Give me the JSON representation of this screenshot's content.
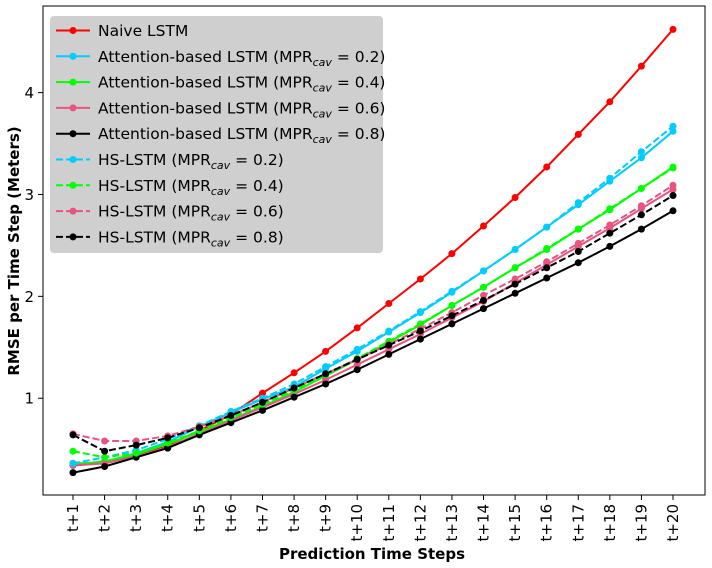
{
  "chart_data": {
    "type": "line",
    "title": "",
    "xlabel": "Prediction Time Steps",
    "ylabel": "RMSE per Time Step (Meters)",
    "ylim": [
      0.05,
      4.85
    ],
    "yticks": [
      1,
      2,
      3,
      4
    ],
    "legend_position": "top-left",
    "categories": [
      "t+1",
      "t+2",
      "t+3",
      "t+4",
      "t+5",
      "t+6",
      "t+7",
      "t+8",
      "t+9",
      "t+10",
      "t+11",
      "t+12",
      "t+13",
      "t+14",
      "t+15",
      "t+16",
      "t+17",
      "t+18",
      "t+19",
      "t+20"
    ],
    "series": [
      {
        "name": "Naive LSTM",
        "label_main": "Naive LSTM",
        "label_sub": "",
        "label_tail": "",
        "color": "#ff0000",
        "dashed": false,
        "values": [
          0.36,
          0.36,
          0.44,
          0.54,
          0.68,
          0.84,
          1.05,
          1.25,
          1.46,
          1.69,
          1.93,
          2.17,
          2.42,
          2.69,
          2.97,
          3.27,
          3.59,
          3.91,
          4.26,
          4.62
        ]
      },
      {
        "name": "Attention-based LSTM (MPRcav = 0.2)",
        "label_main": "Attention-based LSTM (MPR",
        "label_sub": "cav",
        "label_tail": " = 0.2)",
        "color": "#00ccff",
        "dashed": false,
        "values": [
          0.35,
          0.37,
          0.46,
          0.57,
          0.72,
          0.86,
          0.99,
          1.11,
          1.29,
          1.46,
          1.65,
          1.84,
          2.04,
          2.25,
          2.46,
          2.68,
          2.9,
          3.13,
          3.36,
          3.62
        ]
      },
      {
        "name": "Attention-based LSTM (MPRcav = 0.4)",
        "label_main": "Attention-based LSTM (MPR",
        "label_sub": "cav",
        "label_tail": " = 0.4)",
        "color": "#00ff00",
        "dashed": false,
        "values": [
          0.35,
          0.38,
          0.45,
          0.55,
          0.67,
          0.79,
          0.92,
          1.06,
          1.22,
          1.38,
          1.55,
          1.72,
          1.91,
          2.09,
          2.28,
          2.46,
          2.66,
          2.85,
          3.06,
          3.27
        ]
      },
      {
        "name": "Attention-based LSTM (MPRcav = 0.6)",
        "label_main": "Attention-based LSTM (MPR",
        "label_sub": "cav",
        "label_tail": " = 0.6)",
        "color": "#e75480",
        "dashed": false,
        "values": [
          0.34,
          0.36,
          0.43,
          0.52,
          0.65,
          0.78,
          0.91,
          1.04,
          1.18,
          1.33,
          1.48,
          1.63,
          1.79,
          1.95,
          2.13,
          2.31,
          2.49,
          2.67,
          2.86,
          3.05
        ]
      },
      {
        "name": "Attention-based LSTM (MPRcav = 0.8)",
        "label_main": "Attention-based LSTM (MPR",
        "label_sub": "cav",
        "label_tail": " = 0.8)",
        "color": "#000000",
        "dashed": false,
        "values": [
          0.27,
          0.33,
          0.42,
          0.51,
          0.64,
          0.76,
          0.88,
          1.01,
          1.14,
          1.28,
          1.43,
          1.58,
          1.73,
          1.88,
          2.03,
          2.18,
          2.33,
          2.49,
          2.66,
          2.84
        ]
      },
      {
        "name": "HS-LSTM (MPRcav = 0.2)",
        "label_main": "HS-LSTM (MPR",
        "label_sub": "cav",
        "label_tail": " = 0.2)",
        "color": "#00ccff",
        "dashed": true,
        "values": [
          0.36,
          0.42,
          0.49,
          0.6,
          0.73,
          0.87,
          1.0,
          1.14,
          1.31,
          1.48,
          1.66,
          1.85,
          2.05,
          2.25,
          2.46,
          2.68,
          2.92,
          3.16,
          3.42,
          3.67
        ]
      },
      {
        "name": "HS-LSTM (MPRcav = 0.4)",
        "label_main": "HS-LSTM (MPR",
        "label_sub": "cav",
        "label_tail": " = 0.4)",
        "color": "#00ff00",
        "dashed": true,
        "values": [
          0.48,
          0.42,
          0.46,
          0.56,
          0.68,
          0.81,
          0.94,
          1.08,
          1.23,
          1.39,
          1.56,
          1.73,
          1.91,
          2.09,
          2.28,
          2.47,
          2.66,
          2.86,
          3.06,
          3.26
        ]
      },
      {
        "name": "HS-LSTM (MPRcav = 0.6)",
        "label_main": "HS-LSTM (MPR",
        "label_sub": "cav",
        "label_tail": " = 0.6)",
        "color": "#e75480",
        "dashed": true,
        "values": [
          0.65,
          0.58,
          0.58,
          0.63,
          0.72,
          0.83,
          0.96,
          1.1,
          1.24,
          1.38,
          1.53,
          1.68,
          1.84,
          2.01,
          2.17,
          2.34,
          2.52,
          2.7,
          2.89,
          3.09
        ]
      },
      {
        "name": "HS-LSTM (MPRcav = 0.8)",
        "label_main": "HS-LSTM (MPR",
        "label_sub": "cav",
        "label_tail": " = 0.8)",
        "color": "#000000",
        "dashed": true,
        "values": [
          0.64,
          0.48,
          0.54,
          0.61,
          0.71,
          0.83,
          0.96,
          1.1,
          1.24,
          1.38,
          1.52,
          1.66,
          1.81,
          1.96,
          2.12,
          2.28,
          2.44,
          2.62,
          2.8,
          2.99
        ]
      }
    ]
  }
}
